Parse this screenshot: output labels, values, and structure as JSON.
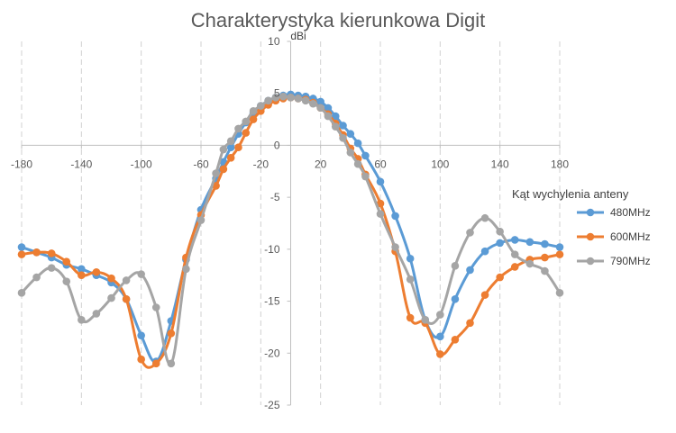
{
  "chart_data": {
    "type": "scatter",
    "title": "Charakterystyka kierunkowa Digit",
    "ylabel": "dBi",
    "xlabel": "Kąt  wychylenia anteny",
    "xlim": [
      -180,
      180
    ],
    "ylim": [
      -25,
      10
    ],
    "xticks": [
      -180,
      -140,
      -100,
      -60,
      -20,
      20,
      60,
      100,
      140,
      180
    ],
    "yticks": [
      10,
      5,
      0,
      -5,
      -10,
      -15,
      -20,
      -25
    ],
    "grid": "vertical",
    "legend": "right",
    "series": [
      {
        "name": "480MHz",
        "color": "#5b9bd5",
        "x": [
          -180,
          -170,
          -160,
          -150,
          -140,
          -130,
          -120,
          -110,
          -100,
          -90,
          -80,
          -70,
          -60,
          -50,
          -45,
          -40,
          -35,
          -30,
          -25,
          -20,
          -15,
          -10,
          -5,
          0,
          5,
          10,
          15,
          20,
          25,
          30,
          35,
          40,
          45,
          50,
          60,
          70,
          80,
          90,
          100,
          110,
          120,
          130,
          140,
          150,
          160,
          170,
          180
        ],
        "y": [
          -9.8,
          -10.3,
          -10.8,
          -11.5,
          -11.9,
          -12.5,
          -13.2,
          -14.8,
          -18.3,
          -20.8,
          -16.9,
          -11.0,
          -6.2,
          -3.2,
          -1.6,
          -0.2,
          1.1,
          2.2,
          3.1,
          3.8,
          4.3,
          4.6,
          4.8,
          4.9,
          4.8,
          4.7,
          4.5,
          4.2,
          3.6,
          2.8,
          1.9,
          1.1,
          0.2,
          -1.0,
          -3.5,
          -6.8,
          -10.9,
          -16.8,
          -18.4,
          -14.8,
          -12.0,
          -10.2,
          -9.4,
          -9.1,
          -9.3,
          -9.5,
          -9.8
        ]
      },
      {
        "name": "600MHz",
        "color": "#ed7d31",
        "x": [
          -180,
          -170,
          -160,
          -150,
          -140,
          -130,
          -120,
          -110,
          -100,
          -90,
          -80,
          -70,
          -60,
          -50,
          -45,
          -40,
          -35,
          -30,
          -25,
          -20,
          -15,
          -10,
          -5,
          0,
          5,
          10,
          15,
          20,
          25,
          30,
          35,
          40,
          45,
          50,
          60,
          70,
          80,
          90,
          100,
          110,
          120,
          130,
          140,
          150,
          160,
          170,
          180
        ],
        "y": [
          -10.5,
          -10.3,
          -10.4,
          -11.2,
          -12.5,
          -12.2,
          -12.8,
          -14.8,
          -20.6,
          -21.0,
          -18.1,
          -10.8,
          -6.7,
          -3.9,
          -2.3,
          -1.2,
          -0.2,
          1.2,
          2.5,
          3.3,
          3.9,
          4.3,
          4.5,
          4.6,
          4.5,
          4.4,
          4.1,
          3.6,
          3.0,
          2.1,
          1.0,
          -0.3,
          -1.3,
          -2.8,
          -5.6,
          -10.2,
          -16.6,
          -17.1,
          -20.1,
          -18.7,
          -17.1,
          -14.4,
          -12.7,
          -11.7,
          -11.0,
          -10.8,
          -10.5
        ]
      },
      {
        "name": "790MHz",
        "color": "#a5a5a5",
        "x": [
          -180,
          -170,
          -160,
          -150,
          -140,
          -130,
          -120,
          -110,
          -100,
          -90,
          -80,
          -70,
          -60,
          -50,
          -45,
          -40,
          -35,
          -30,
          -25,
          -20,
          -15,
          -10,
          -5,
          0,
          5,
          10,
          15,
          20,
          25,
          30,
          35,
          40,
          45,
          50,
          60,
          70,
          80,
          90,
          100,
          110,
          120,
          130,
          140,
          150,
          160,
          170,
          180
        ],
        "y": [
          -14.2,
          -12.7,
          -11.8,
          -13.1,
          -16.8,
          -16.2,
          -14.7,
          -13.0,
          -12.4,
          -15.6,
          -21.0,
          -11.9,
          -7.2,
          -2.7,
          -0.4,
          0.4,
          1.6,
          2.3,
          3.3,
          3.8,
          4.3,
          4.6,
          4.7,
          4.6,
          4.5,
          4.3,
          4.0,
          3.6,
          2.8,
          1.8,
          0.7,
          -0.7,
          -1.8,
          -3.0,
          -6.6,
          -9.8,
          -12.9,
          -16.8,
          -16.3,
          -11.6,
          -8.4,
          -7.0,
          -8.3,
          -10.5,
          -11.4,
          -12.1,
          -14.2
        ]
      }
    ]
  }
}
